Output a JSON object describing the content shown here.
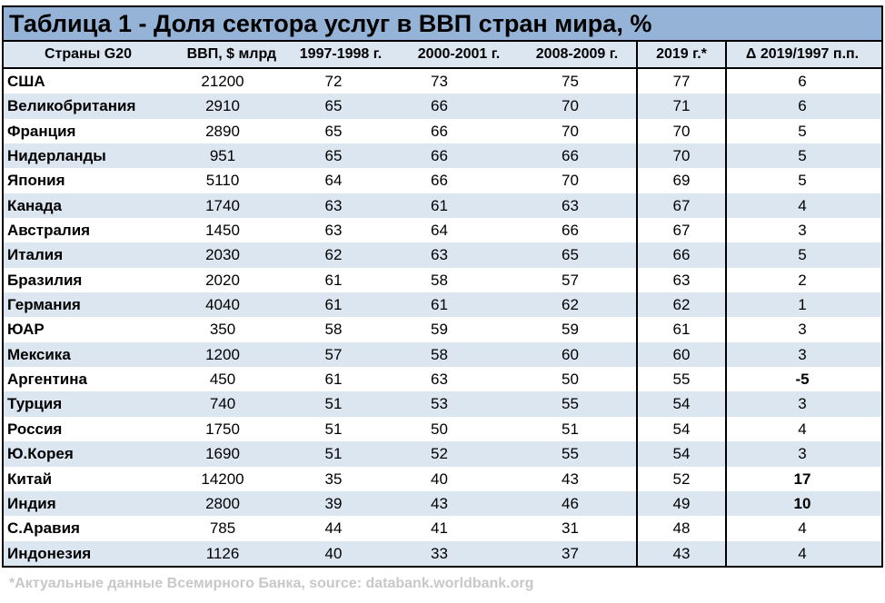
{
  "title": "Таблица 1 - Доля сектора услуг в ВВП стран мира, %",
  "headers": [
    "Страны G20",
    "ВВП, $ млрд",
    "1997-1998 г.",
    "2000-2001 г.",
    "2008-2009 г.",
    "2019 г.*",
    "Δ 2019/1997 п.п."
  ],
  "rows": [
    {
      "country": "США",
      "gdp": "21200",
      "y1997": "72",
      "y2000": "73",
      "y2008": "75",
      "y2019": "77",
      "delta": "6",
      "delta_bold": false
    },
    {
      "country": "Великобритания",
      "gdp": "2910",
      "y1997": "65",
      "y2000": "66",
      "y2008": "70",
      "y2019": "71",
      "delta": "6",
      "delta_bold": false
    },
    {
      "country": "Франция",
      "gdp": "2890",
      "y1997": "65",
      "y2000": "66",
      "y2008": "70",
      "y2019": "70",
      "delta": "5",
      "delta_bold": false
    },
    {
      "country": "Нидерланды",
      "gdp": "951",
      "y1997": "65",
      "y2000": "66",
      "y2008": "66",
      "y2019": "70",
      "delta": "5",
      "delta_bold": false
    },
    {
      "country": "Япония",
      "gdp": "5110",
      "y1997": "64",
      "y2000": "66",
      "y2008": "70",
      "y2019": "69",
      "delta": "5",
      "delta_bold": false
    },
    {
      "country": "Канада",
      "gdp": "1740",
      "y1997": "63",
      "y2000": "61",
      "y2008": "63",
      "y2019": "67",
      "delta": "4",
      "delta_bold": false
    },
    {
      "country": "Австралия",
      "gdp": "1450",
      "y1997": "63",
      "y2000": "64",
      "y2008": "66",
      "y2019": "67",
      "delta": "3",
      "delta_bold": false
    },
    {
      "country": "Италия",
      "gdp": "2030",
      "y1997": "62",
      "y2000": "63",
      "y2008": "65",
      "y2019": "66",
      "delta": "5",
      "delta_bold": false
    },
    {
      "country": "Бразилия",
      "gdp": "2020",
      "y1997": "61",
      "y2000": "58",
      "y2008": "57",
      "y2019": "63",
      "delta": "2",
      "delta_bold": false
    },
    {
      "country": "Германия",
      "gdp": "4040",
      "y1997": "61",
      "y2000": "61",
      "y2008": "62",
      "y2019": "62",
      "delta": "1",
      "delta_bold": false
    },
    {
      "country": "ЮАР",
      "gdp": "350",
      "y1997": "58",
      "y2000": "59",
      "y2008": "59",
      "y2019": "61",
      "delta": "3",
      "delta_bold": false
    },
    {
      "country": "Мексика",
      "gdp": "1200",
      "y1997": "57",
      "y2000": "58",
      "y2008": "60",
      "y2019": "60",
      "delta": "3",
      "delta_bold": false
    },
    {
      "country": "Аргентина",
      "gdp": "450",
      "y1997": "61",
      "y2000": "63",
      "y2008": "50",
      "y2019": "55",
      "delta": "-5",
      "delta_bold": true
    },
    {
      "country": "Турция",
      "gdp": "740",
      "y1997": "51",
      "y2000": "53",
      "y2008": "55",
      "y2019": "54",
      "delta": "3",
      "delta_bold": false
    },
    {
      "country": "Россия",
      "gdp": "1750",
      "y1997": "51",
      "y2000": "50",
      "y2008": "51",
      "y2019": "54",
      "delta": "4",
      "delta_bold": false
    },
    {
      "country": "Ю.Корея",
      "gdp": "1690",
      "y1997": "51",
      "y2000": "52",
      "y2008": "55",
      "y2019": "54",
      "delta": "3",
      "delta_bold": false
    },
    {
      "country": "Китай",
      "gdp": "14200",
      "y1997": "35",
      "y2000": "40",
      "y2008": "43",
      "y2019": "52",
      "delta": "17",
      "delta_bold": true
    },
    {
      "country": "Индия",
      "gdp": "2800",
      "y1997": "39",
      "y2000": "43",
      "y2008": "46",
      "y2019": "49",
      "delta": "10",
      "delta_bold": true
    },
    {
      "country": "С.Аравия",
      "gdp": "785",
      "y1997": "44",
      "y2000": "41",
      "y2008": "31",
      "y2019": "48",
      "delta": "4",
      "delta_bold": false
    },
    {
      "country": "Индонезия",
      "gdp": "1126",
      "y1997": "40",
      "y2000": "33",
      "y2008": "37",
      "y2019": "43",
      "delta": "4",
      "delta_bold": false
    }
  ],
  "footnote": "*Актуальные данные Всемирного Банка, source: databank.worldbank.org",
  "colors": {
    "title_bg": "#95b3d7",
    "header_bg": "#dce6f1",
    "alt_row_bg": "#dce6f1",
    "footnote": "#c8c8c8"
  }
}
